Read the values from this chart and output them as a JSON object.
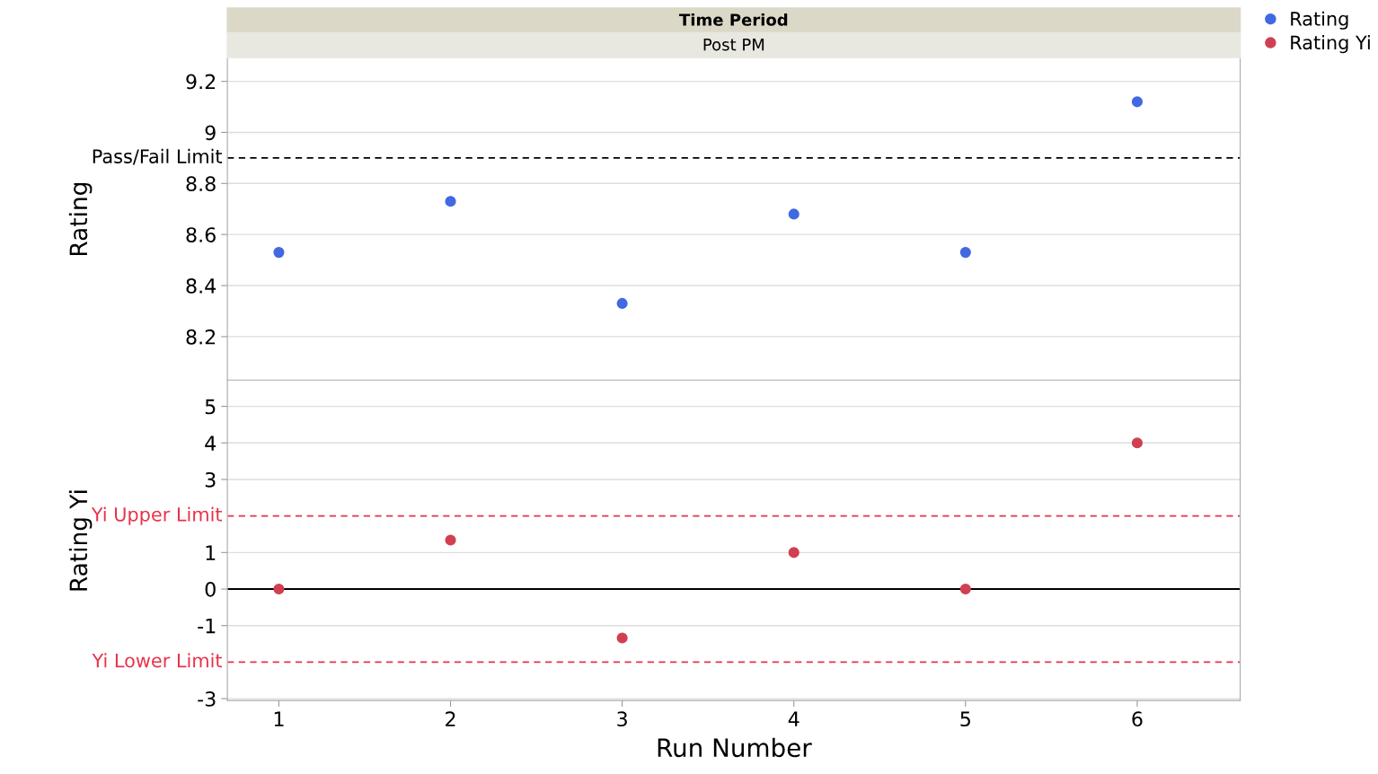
{
  "chart_data": [
    {
      "type": "scatter",
      "title": "Time Period",
      "subtitle": "Post PM",
      "ylabel": "Rating",
      "x": [
        1,
        2,
        3,
        4,
        5,
        6
      ],
      "series": [
        {
          "name": "Rating",
          "color": "#4169e1",
          "values": [
            8.53,
            8.73,
            8.33,
            8.68,
            8.53,
            9.12
          ]
        }
      ],
      "xlim": [
        0.7,
        6.6
      ],
      "ylim": [
        8.03,
        9.29
      ],
      "yticks": [
        8.2,
        8.4,
        8.6,
        8.8,
        9,
        9.2
      ],
      "ref_lines": [
        {
          "axis": "y",
          "value": 8.9,
          "label": "Pass/Fail Limit",
          "color": "#000000",
          "line_style": "dashed"
        }
      ],
      "grid": "y",
      "legend": "top right",
      "marker": "circle",
      "tick_labels": "y"
    },
    {
      "type": "scatter",
      "ylabel": "Rating Yi",
      "xlabel": "Run Number",
      "x": [
        1,
        2,
        3,
        4,
        5,
        6
      ],
      "series": [
        {
          "name": "Rating Yi",
          "color": "#d04050",
          "values": [
            0,
            1.34,
            -1.34,
            1,
            0,
            4
          ]
        }
      ],
      "xlim": [
        0.7,
        6.6
      ],
      "xticks": [
        1,
        2,
        3,
        4,
        5,
        6
      ],
      "ylim": [
        -3.05,
        5.7
      ],
      "yticks": [
        -3,
        -1,
        0,
        1,
        3,
        4,
        5
      ],
      "ref_lines": [
        {
          "axis": "y",
          "value": 2,
          "label": "Yi Upper Limit",
          "color": "#e8334a",
          "line_style": "dashed"
        },
        {
          "axis": "y",
          "value": -2,
          "label": "Yi Lower Limit",
          "color": "#e8334a",
          "line_style": "dashed"
        },
        {
          "axis": "y",
          "value": 0,
          "color": "#000000",
          "line_style": "solid"
        }
      ],
      "grid": "y",
      "legend": "top right",
      "marker": "circle"
    }
  ]
}
